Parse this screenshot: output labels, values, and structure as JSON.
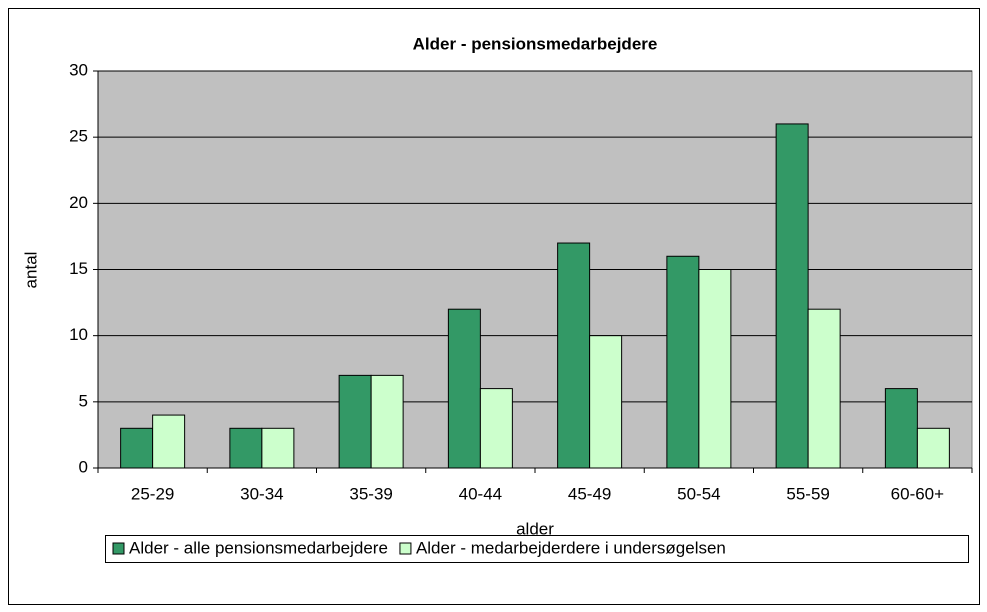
{
  "chart_data": {
    "type": "bar",
    "title": "Alder - pensionsmedarbejdere",
    "x_label": "alder",
    "y_label": "antal",
    "categories": [
      "25-29",
      "30-34",
      "35-39",
      "40-44",
      "45-49",
      "50-54",
      "55-59",
      "60-60+"
    ],
    "series": [
      {
        "name": "Alder - alle pensionsmedarbejdere",
        "color": "#339966",
        "values": [
          3,
          3,
          7,
          12,
          17,
          16,
          26,
          6
        ]
      },
      {
        "name": "Alder - medarbejderdere i undersøgelsen",
        "color": "#ccffcc",
        "values": [
          4,
          3,
          7,
          6,
          10,
          15,
          12,
          3
        ]
      }
    ],
    "ylim": [
      0,
      30
    ],
    "yticks": [
      0,
      5,
      10,
      15,
      20,
      25,
      30
    ],
    "grid": true,
    "legend": "bottom"
  }
}
